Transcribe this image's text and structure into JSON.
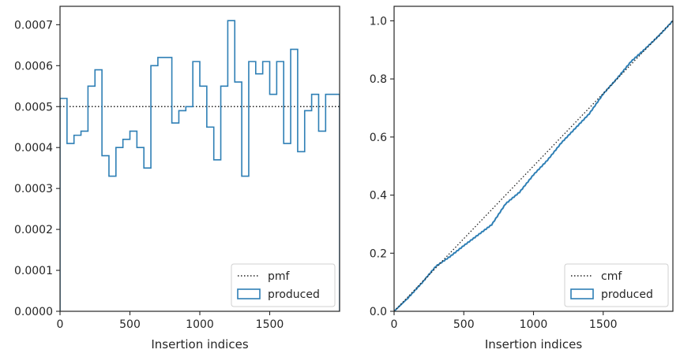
{
  "chart_data": [
    {
      "type": "step",
      "xlabel": "Insertion indices",
      "ylabel": "",
      "xlim": [
        0,
        2000
      ],
      "ylim": [
        0,
        0.000745
      ],
      "xticks": [
        0,
        500,
        1000,
        1500
      ],
      "xtick_labels": [
        "0",
        "500",
        "1000",
        "1500"
      ],
      "yticks": [
        0,
        0.0001,
        0.0002,
        0.0003,
        0.0004,
        0.0005,
        0.0006,
        0.0007
      ],
      "ytick_labels": [
        "0.0000",
        "0.0001",
        "0.0002",
        "0.0003",
        "0.0004",
        "0.0005",
        "0.0006",
        "0.0007"
      ],
      "grid": false,
      "legend": {
        "position": "lower-right",
        "entries": [
          {
            "label": "pmf",
            "style": "dotted-line",
            "color": "#222222"
          },
          {
            "label": "produced",
            "style": "box",
            "color": "#2e7fb5"
          }
        ]
      },
      "reference_line": {
        "name": "pmf",
        "y": 0.0005
      },
      "series": [
        {
          "name": "produced",
          "bin_width": 50,
          "bin_start": 0,
          "values": [
            0.00052,
            0.00041,
            0.00043,
            0.00044,
            0.00055,
            0.00059,
            0.00038,
            0.00033,
            0.0004,
            0.00042,
            0.00044,
            0.0004,
            0.00035,
            0.0006,
            0.00062,
            0.00062,
            0.00046,
            0.00049,
            0.0005,
            0.00061,
            0.00055,
            0.00045,
            0.00037,
            0.00055,
            0.00071,
            0.00056,
            0.00033,
            0.00061,
            0.00058,
            0.00061,
            0.00053,
            0.00061,
            0.00041,
            0.00064,
            0.00039,
            0.00049,
            0.00053,
            0.00044,
            0.00053,
            0.00053
          ]
        }
      ]
    },
    {
      "type": "line",
      "xlabel": "Insertion indices",
      "ylabel": "",
      "xlim": [
        0,
        2000
      ],
      "ylim": [
        0,
        1.05
      ],
      "xticks": [
        0,
        500,
        1000,
        1500
      ],
      "xtick_labels": [
        "0",
        "500",
        "1000",
        "1500"
      ],
      "yticks": [
        0,
        0.2,
        0.4,
        0.6,
        0.8,
        1.0
      ],
      "ytick_labels": [
        "0.0",
        "0.2",
        "0.4",
        "0.6",
        "0.8",
        "1.0"
      ],
      "grid": false,
      "legend": {
        "position": "lower-right",
        "entries": [
          {
            "label": "cmf",
            "style": "dotted-line",
            "color": "#222222"
          },
          {
            "label": "produced",
            "style": "box",
            "color": "#2e7fb5"
          }
        ]
      },
      "reference_line": {
        "name": "cmf",
        "points": [
          [
            0,
            0
          ],
          [
            2000,
            1.0
          ]
        ]
      },
      "series": [
        {
          "name": "produced",
          "x": [
            0,
            100,
            200,
            300,
            400,
            500,
            600,
            700,
            800,
            900,
            1000,
            1100,
            1200,
            1300,
            1400,
            1500,
            1600,
            1700,
            1800,
            1900,
            2000
          ],
          "values": [
            0,
            0.046,
            0.098,
            0.155,
            0.188,
            0.226,
            0.262,
            0.298,
            0.37,
            0.41,
            0.47,
            0.52,
            0.58,
            0.63,
            0.68,
            0.748,
            0.802,
            0.86,
            0.903,
            0.949,
            1.0
          ]
        }
      ]
    }
  ]
}
